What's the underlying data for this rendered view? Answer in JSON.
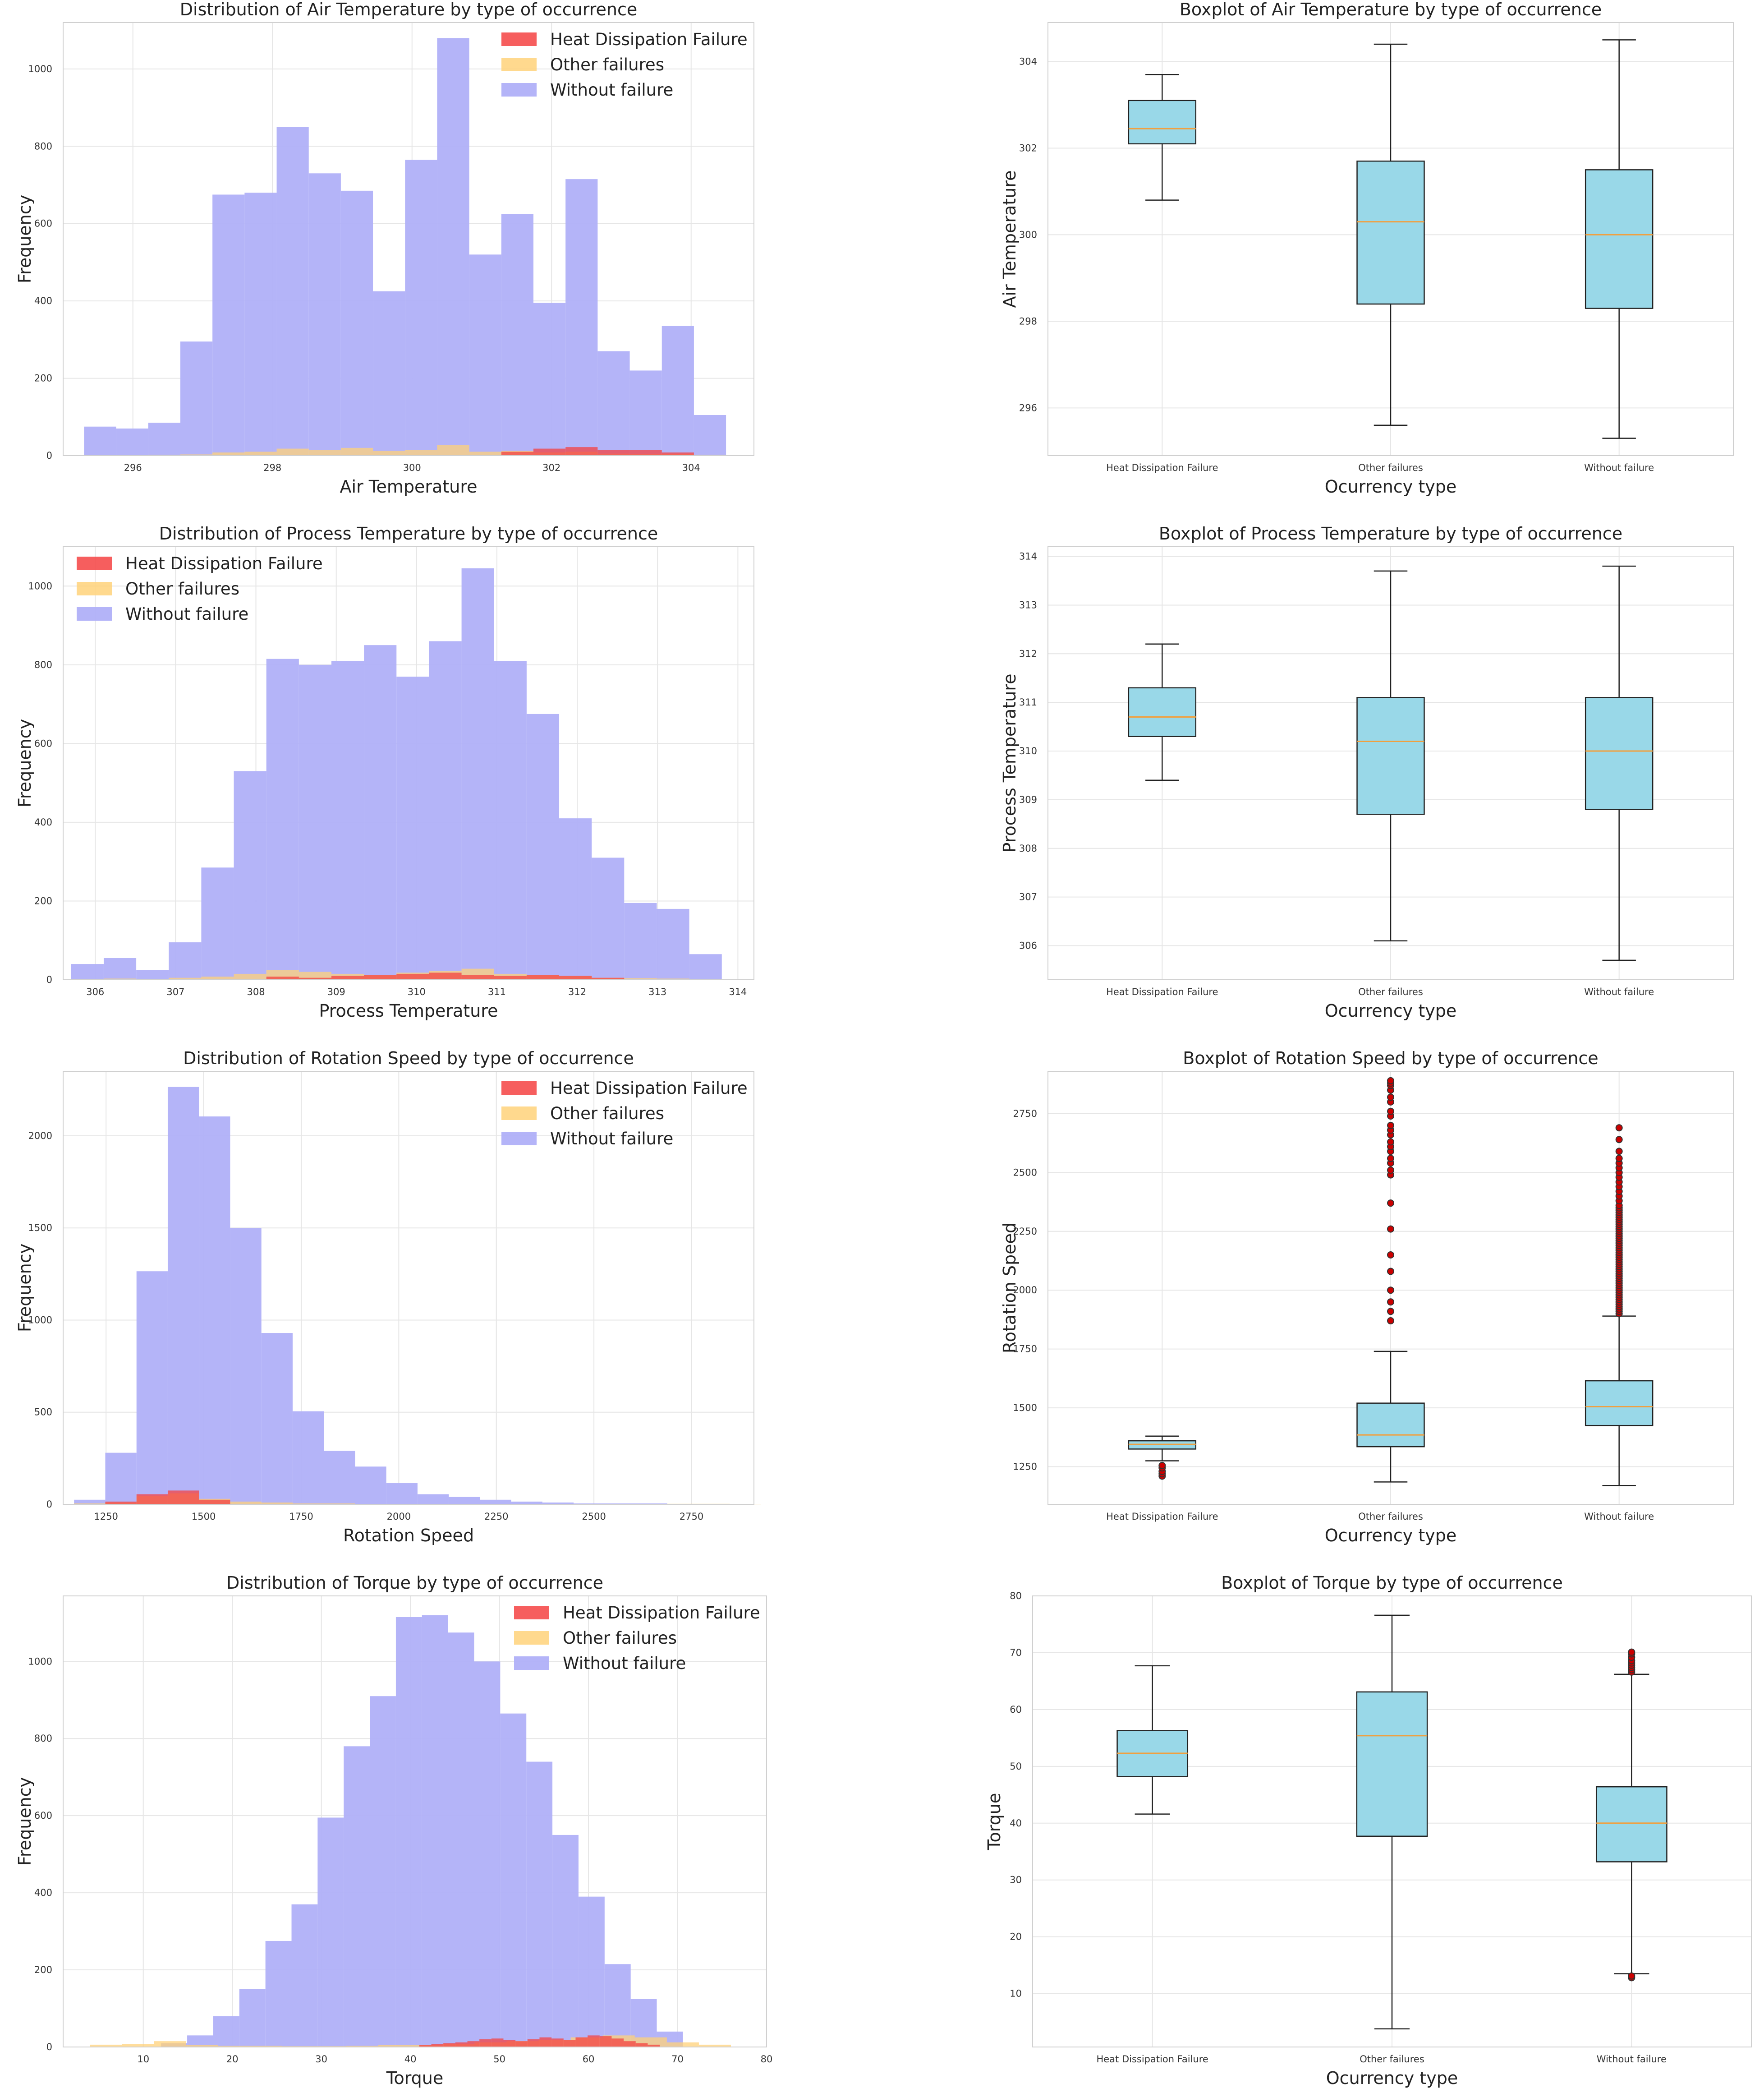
{
  "colors": {
    "heat": "#f44242",
    "other": "#ffd27a",
    "without": "#b0b0f8",
    "box_fill": "#99d8e8",
    "median": "#f0a040",
    "flier": "#cc0000",
    "grid": "#e6e6e6",
    "frame": "#d0d0d0"
  },
  "chart_data": [
    {
      "type": "bar",
      "subtype": "histogram",
      "title": "Distribution of Air Temperature by type of occurrence",
      "xlabel": "Air Temperature",
      "ylabel": "Frequency",
      "xlim": [
        295.0,
        304.9
      ],
      "ylim": [
        0,
        1120
      ],
      "xticks": [
        296,
        298,
        300,
        302,
        304
      ],
      "yticks": [
        0,
        200,
        400,
        600,
        800,
        1000
      ],
      "legend": "top-right",
      "legend_entries": [
        "Heat Dissipation Failure",
        "Other failures",
        "Without failure"
      ],
      "bin_start": 295.3,
      "bin_width": 0.46,
      "series": [
        {
          "name": "Without failure",
          "color_key": "without",
          "values": [
            75,
            70,
            85,
            295,
            675,
            680,
            850,
            730,
            685,
            425,
            765,
            1080,
            520,
            625,
            395,
            715,
            270,
            220,
            335,
            105
          ]
        },
        {
          "name": "Other failures",
          "color_key": "other",
          "values": [
            1,
            1,
            2,
            3,
            8,
            10,
            18,
            15,
            20,
            12,
            14,
            28,
            10,
            12,
            8,
            10,
            5,
            4,
            4,
            2
          ]
        },
        {
          "name": "Heat Dissipation Failure",
          "color_key": "heat",
          "values": [
            0,
            0,
            0,
            0,
            0,
            0,
            0,
            0,
            0,
            0,
            0,
            0,
            0,
            10,
            18,
            22,
            15,
            14,
            8,
            0
          ]
        }
      ]
    },
    {
      "type": "boxplot",
      "title": "Boxplot of Air Temperature by type of occurrence",
      "xlabel": "Ocurrency type",
      "ylabel": "Air Temperature",
      "ylim": [
        294.9,
        304.9
      ],
      "yticks": [
        296,
        298,
        300,
        302,
        304
      ],
      "categories": [
        "Heat Dissipation Failure",
        "Other failures",
        "Without failure"
      ],
      "boxes": [
        {
          "whislo": 300.8,
          "q1": 302.1,
          "med": 302.45,
          "q3": 303.1,
          "whishi": 303.7,
          "fliers": []
        },
        {
          "whislo": 295.6,
          "q1": 298.4,
          "med": 300.3,
          "q3": 301.7,
          "whishi": 304.4,
          "fliers": []
        },
        {
          "whislo": 295.3,
          "q1": 298.3,
          "med": 300.0,
          "q3": 301.5,
          "whishi": 304.5,
          "fliers": []
        }
      ]
    },
    {
      "type": "bar",
      "subtype": "histogram",
      "title": "Distribution of Process Temperature by type of occurrence",
      "xlabel": "Process Temperature",
      "ylabel": "Frequency",
      "xlim": [
        305.6,
        314.2
      ],
      "ylim": [
        0,
        1100
      ],
      "xticks": [
        306,
        307,
        308,
        309,
        310,
        311,
        312,
        313,
        314
      ],
      "yticks": [
        0,
        200,
        400,
        600,
        800,
        1000
      ],
      "legend": "top-left",
      "legend_entries": [
        "Heat Dissipation Failure",
        "Other failures",
        "Without failure"
      ],
      "bin_start": 305.7,
      "bin_width": 0.405,
      "series": [
        {
          "name": "Without failure",
          "color_key": "without",
          "values": [
            40,
            55,
            25,
            95,
            285,
            530,
            815,
            800,
            810,
            850,
            770,
            860,
            1045,
            810,
            675,
            410,
            310,
            195,
            180,
            65
          ]
        },
        {
          "name": "Other failures",
          "color_key": "other",
          "values": [
            2,
            3,
            2,
            5,
            8,
            15,
            25,
            20,
            15,
            12,
            18,
            22,
            28,
            15,
            12,
            10,
            5,
            4,
            3,
            1
          ]
        },
        {
          "name": "Heat Dissipation Failure",
          "color_key": "heat",
          "values": [
            0,
            0,
            0,
            0,
            0,
            0,
            8,
            5,
            10,
            12,
            15,
            18,
            12,
            10,
            12,
            10,
            5,
            0,
            0,
            0
          ]
        }
      ]
    },
    {
      "type": "boxplot",
      "title": "Boxplot of Process Temperature by type of occurrence",
      "xlabel": "Ocurrency type",
      "ylabel": "Process Temperature",
      "ylim": [
        305.3,
        314.2
      ],
      "yticks": [
        306,
        307,
        308,
        309,
        310,
        311,
        312,
        313,
        314
      ],
      "categories": [
        "Heat Dissipation Failure",
        "Other failures",
        "Without failure"
      ],
      "boxes": [
        {
          "whislo": 309.4,
          "q1": 310.3,
          "med": 310.7,
          "q3": 311.3,
          "whishi": 312.2,
          "fliers": []
        },
        {
          "whislo": 306.1,
          "q1": 308.7,
          "med": 310.2,
          "q3": 311.1,
          "whishi": 313.7,
          "fliers": []
        },
        {
          "whislo": 305.7,
          "q1": 308.8,
          "med": 310.0,
          "q3": 311.1,
          "whishi": 313.8,
          "fliers": []
        }
      ]
    },
    {
      "type": "bar",
      "subtype": "histogram",
      "title": "Distribution of Rotation Speed by type of occurrence",
      "xlabel": "Rotation Speed",
      "ylabel": "Frequency",
      "xlim": [
        1140,
        2910
      ],
      "ylim": [
        0,
        2350
      ],
      "xticks": [
        1250,
        1500,
        1750,
        2000,
        2250,
        2500,
        2750
      ],
      "yticks": [
        0,
        500,
        1000,
        1500,
        2000
      ],
      "legend": "top-right",
      "legend_entries": [
        "Heat Dissipation Failure",
        "Other failures",
        "Without failure"
      ],
      "bin_start": 1168,
      "bin_width": 80,
      "series": [
        {
          "name": "Without failure",
          "color_key": "without",
          "values": [
            25,
            280,
            1265,
            2265,
            2105,
            1500,
            930,
            505,
            290,
            205,
            115,
            55,
            40,
            25,
            15,
            10,
            5,
            5,
            5,
            2,
            2,
            1
          ]
        },
        {
          "name": "Other failures",
          "color_key": "other",
          "values": [
            5,
            10,
            45,
            60,
            30,
            15,
            10,
            5,
            5,
            2,
            2,
            0,
            0,
            0,
            0,
            2,
            0,
            0,
            0,
            3,
            3,
            2
          ]
        },
        {
          "name": "Heat Dissipation Failure",
          "color_key": "heat",
          "values": [
            0,
            15,
            55,
            75,
            25,
            0,
            0,
            0,
            0,
            0,
            0,
            0,
            0,
            0,
            0,
            0,
            0,
            0,
            0,
            0,
            0,
            0
          ]
        }
      ]
    },
    {
      "type": "boxplot",
      "title": "Boxplot of Rotation Speed by type of occurrence",
      "xlabel": "Ocurrency type",
      "ylabel": "Rotation Speed",
      "ylim": [
        1090,
        2930
      ],
      "yticks": [
        1250,
        1500,
        1750,
        2000,
        2250,
        2500,
        2750
      ],
      "categories": [
        "Heat Dissipation Failure",
        "Other failures",
        "Without failure"
      ],
      "boxes": [
        {
          "whislo": 1275,
          "q1": 1325,
          "med": 1345,
          "q3": 1360,
          "whishi": 1380,
          "fliers": [
            1210,
            1220,
            1230,
            1245,
            1255
          ]
        },
        {
          "whislo": 1185,
          "q1": 1335,
          "med": 1385,
          "q3": 1520,
          "whishi": 1740,
          "fliers": [
            1870,
            1910,
            1950,
            2000,
            2080,
            2150,
            2260,
            2370,
            2490,
            2510,
            2540,
            2560,
            2590,
            2610,
            2630,
            2660,
            2680,
            2700,
            2740,
            2760,
            2800,
            2820,
            2850,
            2870,
            2880,
            2890
          ]
        },
        {
          "whislo": 1170,
          "q1": 1425,
          "med": 1505,
          "q3": 1615,
          "whishi": 1890,
          "fliers": [
            1900,
            1910,
            1920,
            1930,
            1940,
            1950,
            1960,
            1970,
            1980,
            1990,
            2000,
            2010,
            2020,
            2030,
            2040,
            2050,
            2060,
            2070,
            2080,
            2090,
            2100,
            2110,
            2120,
            2130,
            2140,
            2150,
            2160,
            2170,
            2180,
            2190,
            2200,
            2210,
            2220,
            2230,
            2240,
            2250,
            2260,
            2270,
            2280,
            2290,
            2300,
            2310,
            2320,
            2330,
            2340,
            2350,
            2360,
            2380,
            2400,
            2420,
            2440,
            2460,
            2480,
            2500,
            2520,
            2540,
            2560,
            2590,
            2640,
            2690
          ]
        }
      ]
    },
    {
      "type": "bar",
      "subtype": "histogram",
      "title": "Distribution of Torque by type of occurrence",
      "xlabel": "Torque",
      "ylabel": "Frequency",
      "xlim": [
        1.0,
        80.0
      ],
      "ylim": [
        0,
        1170
      ],
      "xticks": [
        10,
        20,
        30,
        40,
        50,
        60,
        70,
        80
      ],
      "yticks": [
        0,
        200,
        400,
        600,
        800,
        1000
      ],
      "legend": "top-right",
      "legend_entries": [
        "Heat Dissipation Failure",
        "Other failures",
        "Without failure"
      ],
      "series": [
        {
          "name": "Without failure",
          "color_key": "without",
          "bin_start": 12.0,
          "bin_width": 2.93,
          "values": [
            10,
            30,
            80,
            150,
            275,
            370,
            595,
            780,
            910,
            1115,
            1120,
            1075,
            1000,
            865,
            740,
            550,
            390,
            215,
            125,
            40
          ]
        },
        {
          "name": "Other failures",
          "color_key": "other",
          "bin_start": 4.0,
          "bin_width": 3.6,
          "values": [
            6,
            8,
            15,
            5,
            3,
            3,
            2,
            2,
            3,
            5,
            5,
            8,
            12,
            15,
            18,
            25,
            30,
            25,
            12,
            6
          ]
        },
        {
          "name": "Heat Dissipation Failure",
          "color_key": "heat",
          "bin_start": 41.0,
          "bin_width": 1.35,
          "values": [
            5,
            8,
            10,
            12,
            15,
            20,
            22,
            18,
            15,
            20,
            25,
            22,
            18,
            25,
            30,
            28,
            22,
            15,
            10,
            6
          ]
        }
      ]
    },
    {
      "type": "boxplot",
      "title": "Boxplot of Torque by type of occurrence",
      "xlabel": "Ocurrency type",
      "ylabel": "Torque",
      "ylim": [
        0.6,
        80
      ],
      "yticks": [
        10,
        20,
        30,
        40,
        50,
        60,
        70,
        80
      ],
      "categories": [
        "Heat Dissipation Failure",
        "Other failures",
        "Without failure"
      ],
      "boxes": [
        {
          "whislo": 41.6,
          "q1": 48.2,
          "med": 52.3,
          "q3": 56.3,
          "whishi": 67.7,
          "fliers": []
        },
        {
          "whislo": 3.8,
          "q1": 37.7,
          "med": 55.4,
          "q3": 63.1,
          "whishi": 76.6,
          "fliers": []
        },
        {
          "whislo": 13.5,
          "q1": 33.2,
          "med": 40.0,
          "q3": 46.4,
          "whishi": 66.2,
          "fliers": [
            12.8,
            13.1,
            66.6,
            67.0,
            67.4,
            67.8,
            68.2,
            68.6,
            69.2,
            69.8,
            70.1
          ]
        }
      ]
    }
  ]
}
